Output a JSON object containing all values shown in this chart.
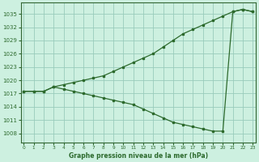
{
  "title": "Graphe pression niveau de la mer (hPa)",
  "background_color": "#cdf0e0",
  "grid_color": "#99ccbb",
  "line_color": "#2d6a2d",
  "x_ticks": [
    0,
    1,
    2,
    3,
    4,
    5,
    6,
    7,
    8,
    9,
    10,
    11,
    12,
    13,
    14,
    15,
    16,
    17,
    18,
    19,
    20,
    21,
    22,
    23
  ],
  "y_ticks": [
    1008,
    1011,
    1014,
    1017,
    1020,
    1023,
    1026,
    1029,
    1032,
    1035
  ],
  "ylim": [
    1006.0,
    1037.5
  ],
  "xlim": [
    -0.3,
    23.3
  ],
  "upper_line_x": [
    0,
    1,
    2,
    3,
    4,
    5,
    6,
    7,
    8,
    9,
    10,
    11,
    12,
    13,
    14,
    15,
    16,
    17,
    18,
    19,
    20,
    21,
    22,
    23
  ],
  "upper_line_y": [
    1017.5,
    1017.5,
    1017.5,
    1018.5,
    1019.0,
    1019.5,
    1020.0,
    1020.5,
    1021.0,
    1022.0,
    1023.0,
    1024.0,
    1025.0,
    1026.0,
    1027.5,
    1029.0,
    1030.5,
    1031.5,
    1032.5,
    1033.5,
    1034.5,
    1035.5,
    1036.0,
    1035.5
  ],
  "lower_line_x": [
    0,
    1,
    2,
    3,
    4,
    5,
    6,
    7,
    8,
    9,
    10,
    11,
    12,
    13,
    14,
    15,
    16,
    17,
    18,
    19,
    20,
    21,
    22,
    23
  ],
  "lower_line_y": [
    1017.5,
    1017.5,
    1017.5,
    1018.5,
    1018.0,
    1017.5,
    1017.0,
    1016.5,
    1016.0,
    1015.5,
    1015.0,
    1014.5,
    1013.5,
    1012.5,
    1011.5,
    1010.5,
    1010.0,
    1009.5,
    1009.0,
    1008.5,
    1008.5,
    1035.5,
    1036.0,
    1035.5
  ]
}
